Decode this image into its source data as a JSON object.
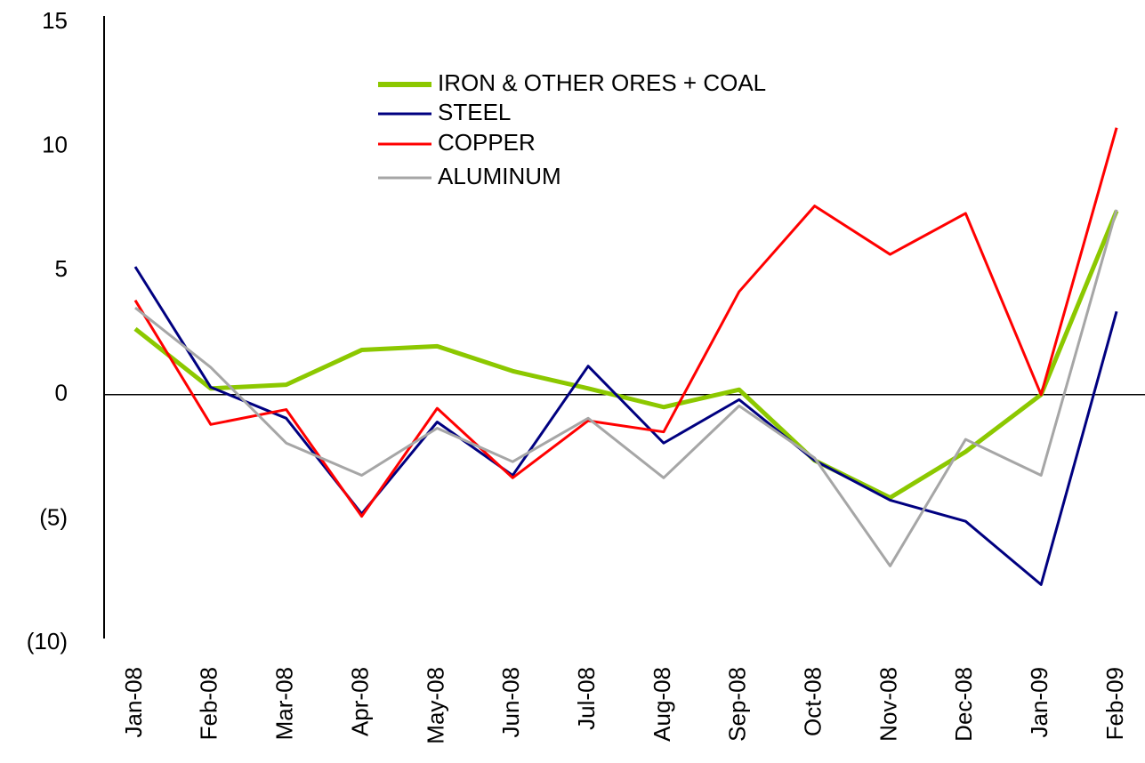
{
  "chart_data": {
    "type": "line",
    "categories": [
      "Jan-08",
      "Feb-08",
      "Mar-08",
      "Apr-08",
      "May-08",
      "Jun-08",
      "Jul-08",
      "Aug-08",
      "Sep-08",
      "Oct-08",
      "Nov-08",
      "Dec-08",
      "Jan-09",
      "Feb-09"
    ],
    "series": [
      {
        "name": "IRON & OTHER ORES + COAL",
        "color": "#8cc800",
        "values": [
          2.65,
          0.25,
          0.4,
          1.8,
          1.95,
          0.95,
          0.25,
          -0.5,
          0.2,
          -2.65,
          -4.15,
          -2.3,
          0,
          7.4
        ]
      },
      {
        "name": "STEEL",
        "color": "#000080",
        "values": [
          5.15,
          0.3,
          -0.95,
          -4.8,
          -1.1,
          -3.25,
          1.15,
          -1.95,
          -0.2,
          -2.65,
          -4.25,
          -5.1,
          -7.65,
          3.35
        ]
      },
      {
        "name": "COPPER",
        "color": "#ff0000",
        "values": [
          3.8,
          -1.2,
          -0.6,
          -4.9,
          -0.55,
          -3.35,
          -1.05,
          -1.5,
          4.15,
          7.6,
          5.65,
          7.3,
          0,
          10.75
        ]
      },
      {
        "name": "ALUMINUM",
        "color": "#a6a6a6",
        "values": [
          3.5,
          1.1,
          -1.95,
          -3.25,
          -1.35,
          -2.7,
          -0.95,
          -3.35,
          -0.45,
          -2.55,
          -6.9,
          -1.8,
          -3.25,
          7.45
        ]
      }
    ],
    "ylim": [
      -10,
      15
    ],
    "yticks": [
      15,
      10,
      5,
      0,
      {
        "value": -5,
        "label": "(5)"
      },
      {
        "value": -10,
        "label": "(10)"
      }
    ]
  }
}
